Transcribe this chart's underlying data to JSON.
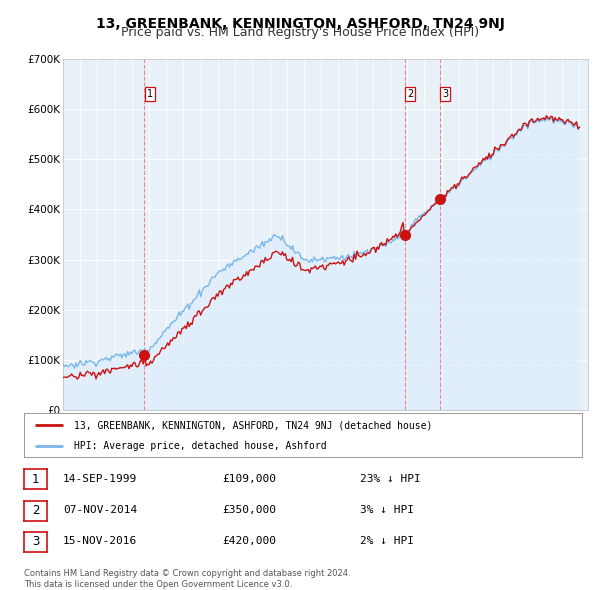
{
  "title": "13, GREENBANK, KENNINGTON, ASHFORD, TN24 9NJ",
  "subtitle": "Price paid vs. HM Land Registry's House Price Index (HPI)",
  "ylim": [
    0,
    700000
  ],
  "yticks": [
    0,
    100000,
    200000,
    300000,
    400000,
    500000,
    600000,
    700000
  ],
  "ytick_labels": [
    "£0",
    "£100K",
    "£200K",
    "£300K",
    "£400K",
    "£500K",
    "£600K",
    "£700K"
  ],
  "hpi_color": "#7ab8e8",
  "hpi_fill_color": "#ddeeff",
  "price_color": "#cc1111",
  "dashed_line_color": "#ee8888",
  "sale_years": [
    1999.71,
    2014.85,
    2016.88
  ],
  "sale_prices": [
    109000,
    350000,
    420000
  ],
  "sale_labels": [
    "1",
    "2",
    "3"
  ],
  "legend_label_price": "13, GREENBANK, KENNINGTON, ASHFORD, TN24 9NJ (detached house)",
  "legend_label_hpi": "HPI: Average price, detached house, Ashford",
  "table_rows": [
    [
      "1",
      "14-SEP-1999",
      "£109,000",
      "23% ↓ HPI"
    ],
    [
      "2",
      "07-NOV-2014",
      "£350,000",
      "3% ↓ HPI"
    ],
    [
      "3",
      "15-NOV-2016",
      "£420,000",
      "2% ↓ HPI"
    ]
  ],
  "footer": "Contains HM Land Registry data © Crown copyright and database right 2024.\nThis data is licensed under the Open Government Licence v3.0.",
  "background_color": "#ffffff",
  "chart_bg_color": "#e8f0f8",
  "grid_color": "#ffffff",
  "title_fontsize": 10,
  "subtitle_fontsize": 9
}
